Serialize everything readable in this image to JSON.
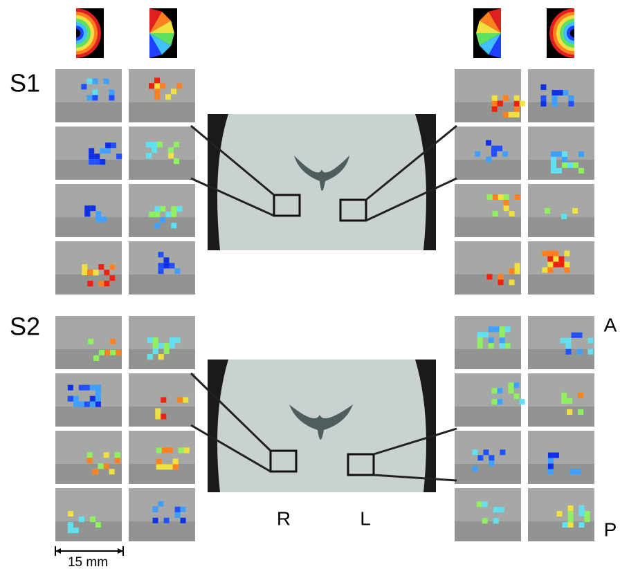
{
  "labels": {
    "s1": "S1",
    "s2": "S2",
    "anterior": "A",
    "posterior": "P",
    "right": "R",
    "left": "L",
    "scale": "15 mm"
  }
}
